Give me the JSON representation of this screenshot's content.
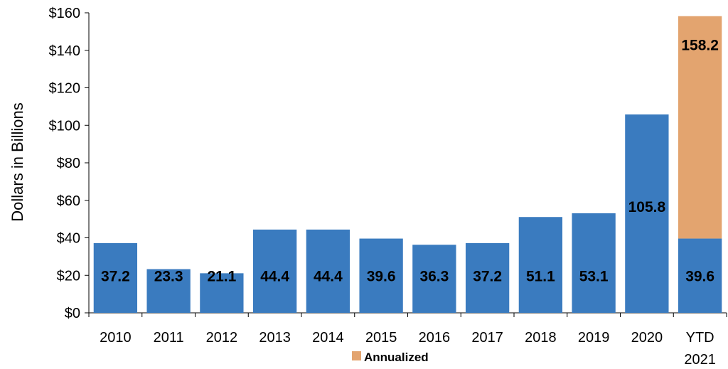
{
  "chart_data": {
    "type": "bar",
    "stacked": true,
    "ylabel": "Dollars in Billions",
    "ylim": [
      0,
      160
    ],
    "yticks": [
      "$0",
      "$20",
      "$40",
      "$60",
      "$80",
      "$100",
      "$120",
      "$140",
      "$160"
    ],
    "categories": [
      "2010",
      "2011",
      "2012",
      "2013",
      "2014",
      "2015",
      "2016",
      "2017",
      "2018",
      "2019",
      "2020",
      "YTD 2021"
    ],
    "values": [
      37.2,
      23.3,
      21.1,
      44.4,
      44.4,
      39.6,
      36.3,
      37.2,
      51.1,
      53.1,
      105.8,
      39.6
    ],
    "value_labels": [
      "37.2",
      "23.3",
      "21.1",
      "44.4",
      "44.4",
      "39.6",
      "36.3",
      "37.2",
      "51.1",
      "53.1",
      "105.8",
      "39.6"
    ],
    "annualized": {
      "name": "Annualized",
      "category": "YTD 2021",
      "total": 158.2,
      "label": "158.2"
    },
    "colors": {
      "bar": "#3a7bbf",
      "annualized": "#e3a46f"
    },
    "grid": false,
    "legend_position": "bottom-center"
  }
}
